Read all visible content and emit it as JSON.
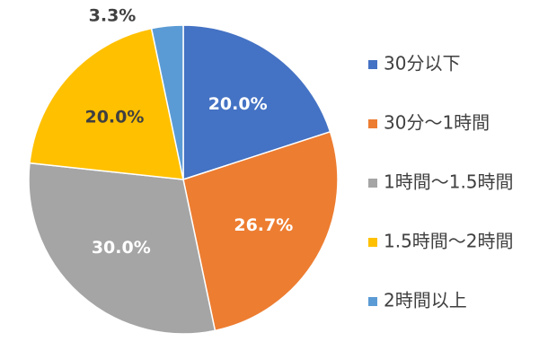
{
  "chart_data": {
    "type": "pie",
    "categories": [
      "30分以下",
      "30分～1時間",
      "1時間～1.5時間",
      "1.5時間～2時間",
      "2時間以上"
    ],
    "values": [
      20.0,
      26.7,
      30.0,
      20.0,
      3.3
    ],
    "value_labels": [
      "20.0%",
      "26.7%",
      "30.0%",
      "20.0%",
      "3.3%"
    ],
    "colors": [
      "#4472c4",
      "#ed7d31",
      "#a5a5a5",
      "#ffc000",
      "#5b9bd5"
    ],
    "legend": "right"
  }
}
